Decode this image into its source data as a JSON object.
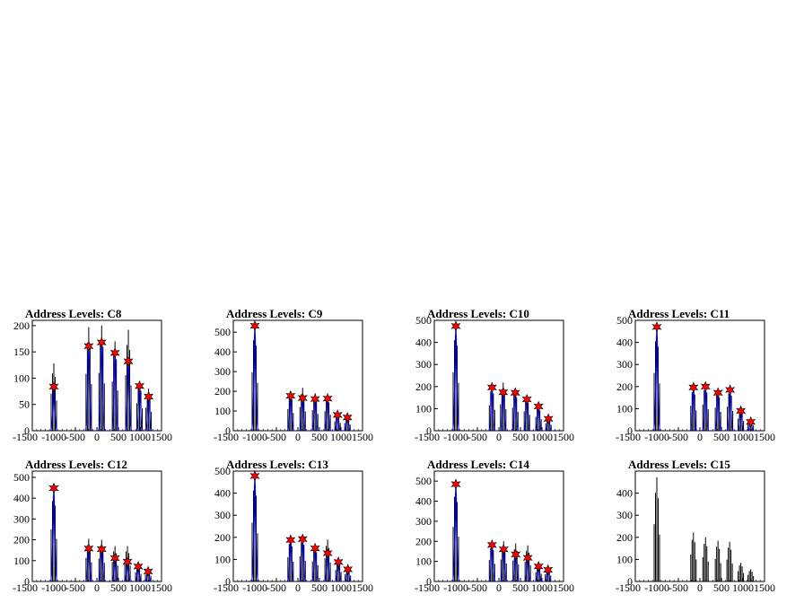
{
  "colors": {
    "background": "#ffffff",
    "histogram": "#000000",
    "fit": "#0000ff",
    "marker": "#ff0000",
    "frame": "#000000"
  },
  "chart_data": [
    {
      "type": "line",
      "title": "Address Levels: C8",
      "xlim": [
        -1500,
        1500
      ],
      "ylim": [
        0,
        210
      ],
      "xticks": [
        -1500,
        -1000,
        -500,
        0,
        500,
        1000,
        1500
      ],
      "xtick_labels": [
        "-1500",
        "-1000",
        "-500",
        "0",
        "500",
        "1000",
        "1500"
      ],
      "yticks": [
        0,
        50,
        100,
        150,
        200
      ],
      "peaks": [
        {
          "x": -1000,
          "hist": 128,
          "fit": 84
        },
        {
          "x": -190,
          "hist": 197,
          "fit": 161
        },
        {
          "x": 110,
          "hist": 200,
          "fit": 168
        },
        {
          "x": 420,
          "hist": 170,
          "fit": 148
        },
        {
          "x": 730,
          "hist": 192,
          "fit": 132
        },
        {
          "x": 990,
          "hist": 95,
          "fit": 85
        },
        {
          "x": 1200,
          "hist": 80,
          "fit": 65
        }
      ],
      "markers": [
        -1000,
        -190,
        110,
        420,
        730,
        990,
        1200
      ]
    },
    {
      "type": "line",
      "title": "Address Levels: C9",
      "xlim": [
        -1500,
        1500
      ],
      "ylim": [
        0,
        560
      ],
      "xticks": [
        -1500,
        -1000,
        -500,
        0,
        500,
        1000,
        1500
      ],
      "xtick_labels": [
        "-1500",
        "-1000",
        "-500",
        "0",
        "500",
        "1000",
        "1500"
      ],
      "yticks": [
        0,
        100,
        200,
        300,
        400,
        500
      ],
      "peaks": [
        {
          "x": -1000,
          "hist": 540,
          "fit": 532
        },
        {
          "x": -170,
          "hist": 200,
          "fit": 177
        },
        {
          "x": 110,
          "hist": 218,
          "fit": 166
        },
        {
          "x": 400,
          "hist": 190,
          "fit": 161
        },
        {
          "x": 690,
          "hist": 180,
          "fit": 163
        },
        {
          "x": 920,
          "hist": 88,
          "fit": 80
        },
        {
          "x": 1150,
          "hist": 70,
          "fit": 67
        }
      ],
      "markers": [
        -1000,
        -170,
        110,
        400,
        690,
        920,
        1150
      ]
    },
    {
      "type": "line",
      "title": "Address Levels: C10",
      "xlim": [
        -1500,
        1500
      ],
      "ylim": [
        0,
        500
      ],
      "xticks": [
        -1500,
        -1000,
        -500,
        0,
        500,
        1000,
        1500
      ],
      "xtick_labels": [
        "-1500",
        "-1000",
        "-500",
        "0",
        "500",
        "1000",
        "1500"
      ],
      "yticks": [
        0,
        100,
        200,
        300,
        400,
        500
      ],
      "peaks": [
        {
          "x": -1000,
          "hist": 482,
          "fit": 474
        },
        {
          "x": -160,
          "hist": 210,
          "fit": 196
        },
        {
          "x": 100,
          "hist": 218,
          "fit": 174
        },
        {
          "x": 380,
          "hist": 190,
          "fit": 172
        },
        {
          "x": 650,
          "hist": 160,
          "fit": 142
        },
        {
          "x": 920,
          "hist": 115,
          "fit": 110
        },
        {
          "x": 1150,
          "hist": 60,
          "fit": 54
        }
      ],
      "markers": [
        -1000,
        -160,
        100,
        380,
        650,
        920,
        1150
      ]
    },
    {
      "type": "line",
      "title": "Address Levels: C11",
      "xlim": [
        -1500,
        1500
      ],
      "ylim": [
        0,
        500
      ],
      "xticks": [
        -1500,
        -1000,
        -500,
        0,
        500,
        1000,
        1500
      ],
      "xtick_labels": [
        "-1500",
        "-1000",
        "-500",
        "0",
        "500",
        "1000",
        "1500"
      ],
      "yticks": [
        0,
        100,
        200,
        300,
        400,
        500
      ],
      "peaks": [
        {
          "x": -1000,
          "hist": 476,
          "fit": 470
        },
        {
          "x": -150,
          "hist": 205,
          "fit": 196
        },
        {
          "x": 130,
          "hist": 216,
          "fit": 200
        },
        {
          "x": 420,
          "hist": 190,
          "fit": 172
        },
        {
          "x": 700,
          "hist": 198,
          "fit": 185
        },
        {
          "x": 950,
          "hist": 100,
          "fit": 90
        },
        {
          "x": 1180,
          "hist": 55,
          "fit": 40
        }
      ],
      "markers": [
        -1000,
        -150,
        130,
        420,
        700,
        950,
        1180
      ]
    },
    {
      "type": "line",
      "title": "Address Levels: C12",
      "xlim": [
        -1500,
        1500
      ],
      "ylim": [
        0,
        530
      ],
      "xticks": [
        -1500,
        -1000,
        -500,
        0,
        500,
        1000,
        1500
      ],
      "xtick_labels": [
        "-1500",
        "-1000",
        "-500",
        "0",
        "500",
        "1000",
        "1500"
      ],
      "yticks": [
        0,
        100,
        200,
        300,
        400,
        500
      ],
      "peaks": [
        {
          "x": -1000,
          "hist": 455,
          "fit": 448
        },
        {
          "x": -190,
          "hist": 205,
          "fit": 158
        },
        {
          "x": 110,
          "hist": 200,
          "fit": 155
        },
        {
          "x": 420,
          "hist": 170,
          "fit": 112
        },
        {
          "x": 710,
          "hist": 170,
          "fit": 95
        },
        {
          "x": 960,
          "hist": 80,
          "fit": 72
        },
        {
          "x": 1190,
          "hist": 60,
          "fit": 48
        }
      ],
      "markers": [
        -1000,
        -190,
        110,
        420,
        710,
        960,
        1190
      ]
    },
    {
      "type": "line",
      "title": "Address Levels: C13",
      "xlim": [
        -1500,
        1500
      ],
      "ylim": [
        0,
        500
      ],
      "xticks": [
        -1500,
        -1000,
        -500,
        0,
        500,
        1000,
        1500
      ],
      "xtick_labels": [
        "-1500",
        "-1000",
        "-500",
        "0",
        "500",
        "1000",
        "1500"
      ],
      "yticks": [
        0,
        100,
        200,
        300,
        400,
        500
      ],
      "peaks": [
        {
          "x": -1000,
          "hist": 485,
          "fit": 478
        },
        {
          "x": -170,
          "hist": 200,
          "fit": 188
        },
        {
          "x": 110,
          "hist": 208,
          "fit": 192
        },
        {
          "x": 400,
          "hist": 165,
          "fit": 150
        },
        {
          "x": 690,
          "hist": 190,
          "fit": 128
        },
        {
          "x": 940,
          "hist": 95,
          "fit": 88
        },
        {
          "x": 1160,
          "hist": 60,
          "fit": 55
        }
      ],
      "markers": [
        -1000,
        -170,
        110,
        400,
        690,
        940,
        1160
      ]
    },
    {
      "type": "line",
      "title": "Address Levels: C14",
      "xlim": [
        -1500,
        1500
      ],
      "ylim": [
        0,
        550
      ],
      "xticks": [
        -1500,
        -1000,
        -500,
        0,
        500,
        1000,
        1500
      ],
      "xtick_labels": [
        "-1500",
        "-1000",
        "-500",
        "0",
        "500",
        "1000",
        "1500"
      ],
      "yticks": [
        0,
        100,
        200,
        300,
        400,
        500
      ],
      "peaks": [
        {
          "x": -1000,
          "hist": 495,
          "fit": 485
        },
        {
          "x": -160,
          "hist": 195,
          "fit": 182
        },
        {
          "x": 110,
          "hist": 200,
          "fit": 160
        },
        {
          "x": 390,
          "hist": 190,
          "fit": 135
        },
        {
          "x": 670,
          "hist": 180,
          "fit": 118
        },
        {
          "x": 920,
          "hist": 85,
          "fit": 75
        },
        {
          "x": 1140,
          "hist": 65,
          "fit": 58
        }
      ],
      "markers": [
        -1000,
        -160,
        110,
        390,
        670,
        920,
        1140
      ]
    },
    {
      "type": "line",
      "title": "Address Levels: C15",
      "xlim": [
        -1500,
        1500
      ],
      "ylim": [
        0,
        500
      ],
      "xticks": [
        -1500,
        -1000,
        -500,
        0,
        500,
        1000,
        1500
      ],
      "xtick_labels": [
        "-1500",
        "-1000",
        "-500",
        "0",
        "500",
        "1000",
        "1500"
      ],
      "yticks": [
        0,
        100,
        200,
        300,
        400
      ],
      "peaks": [
        {
          "x": -1000,
          "hist": 472,
          "fit": 0
        },
        {
          "x": -150,
          "hist": 222,
          "fit": 0
        },
        {
          "x": 130,
          "hist": 200,
          "fit": 0
        },
        {
          "x": 420,
          "hist": 185,
          "fit": 0
        },
        {
          "x": 690,
          "hist": 180,
          "fit": 0
        },
        {
          "x": 950,
          "hist": 85,
          "fit": 0
        },
        {
          "x": 1180,
          "hist": 55,
          "fit": 0
        }
      ],
      "markers": []
    }
  ]
}
